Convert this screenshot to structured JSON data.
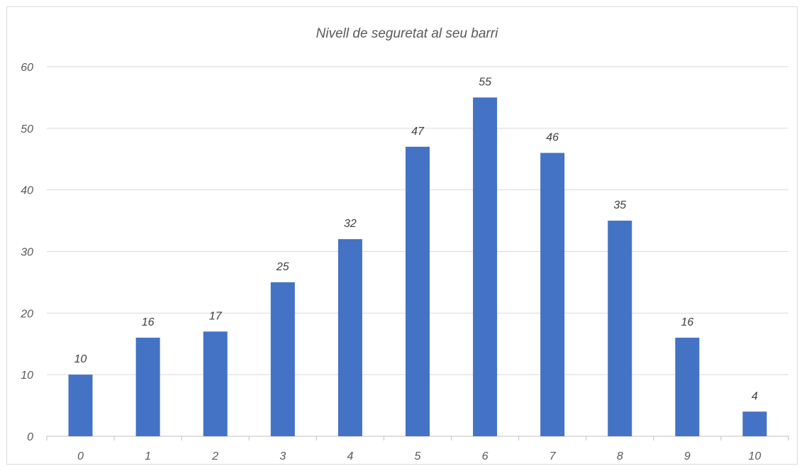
{
  "chart_data": {
    "type": "bar",
    "title": "Nivell de seguretat al seu barri",
    "xlabel": "",
    "ylabel": "",
    "categories": [
      "0",
      "1",
      "2",
      "3",
      "4",
      "5",
      "6",
      "7",
      "8",
      "9",
      "10"
    ],
    "values": [
      10,
      16,
      17,
      25,
      32,
      47,
      55,
      46,
      35,
      16,
      4
    ],
    "ylim": [
      0,
      60
    ],
    "yticks": [
      0,
      10,
      20,
      30,
      40,
      50,
      60
    ],
    "grid": true,
    "data_labels": true,
    "bar_color": "#4472c4"
  }
}
